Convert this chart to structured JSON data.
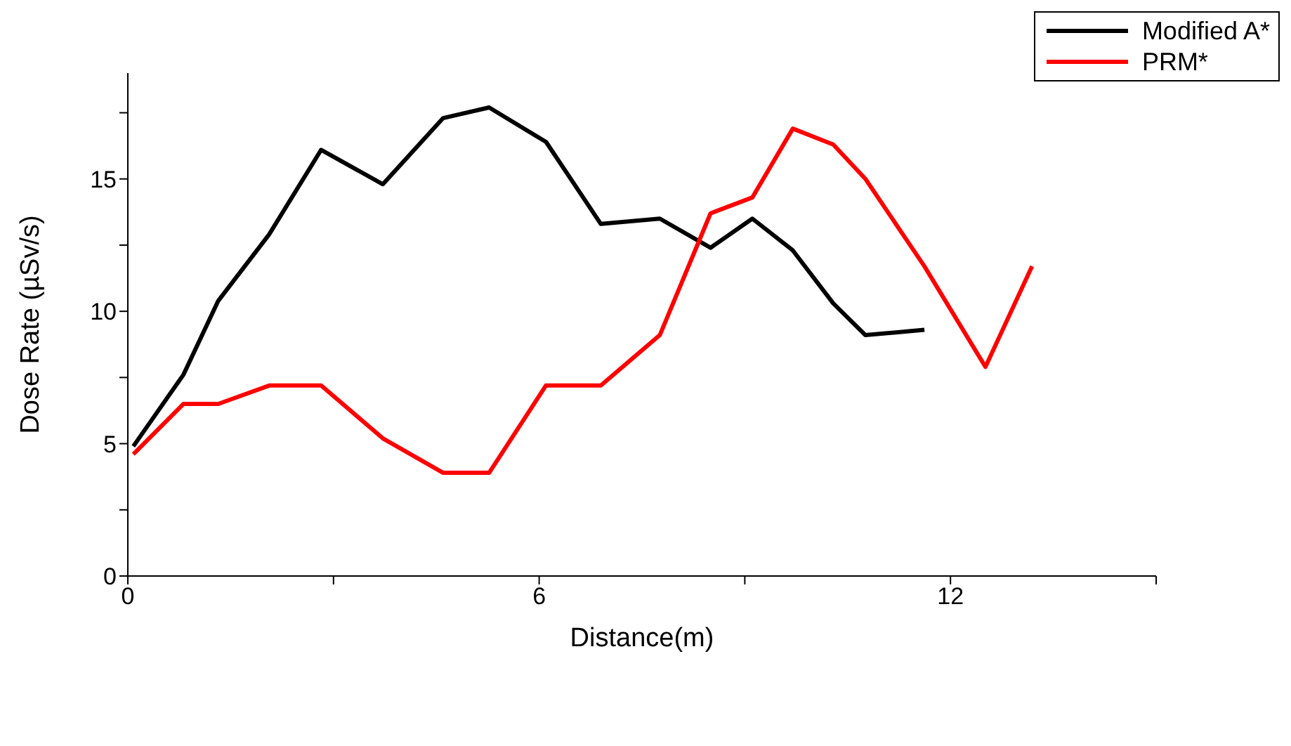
{
  "chart_data": {
    "type": "line",
    "xlabel": "Distance(m)",
    "ylabel": "Dose Rate (µSv/s)",
    "xlim": [
      0,
      15
    ],
    "xticks": [
      0,
      {
        "value": 3,
        "label": null
      },
      6,
      {
        "value": 9,
        "label": null
      },
      12,
      {
        "value": 15,
        "label": null
      }
    ],
    "ylim": [
      0,
      19
    ],
    "yticks": [
      0,
      {
        "value": 2.5,
        "label": null
      },
      5,
      {
        "value": 7.5,
        "label": null
      },
      10,
      {
        "value": 12.5,
        "label": null
      },
      15,
      {
        "value": 17.5,
        "label": null
      }
    ],
    "grid": false,
    "legend": "top right",
    "line_style": "solid",
    "series": [
      {
        "name": "Modified A*",
        "color": "#000000",
        "x": [
          0.08,
          0.81,
          1.32,
          2.06,
          2.82,
          3.72,
          4.6,
          5.27,
          6.1,
          6.9,
          7.76,
          8.5,
          9.11,
          9.7,
          10.29,
          10.76,
          11.62
        ],
        "values": [
          4.9,
          7.6,
          10.4,
          12.9,
          16.1,
          14.8,
          17.3,
          17.7,
          16.4,
          13.3,
          13.5,
          12.4,
          13.5,
          12.3,
          10.3,
          9.1,
          9.3
        ]
      },
      {
        "name": "PRM*",
        "color": "#ff0000",
        "x": [
          0.08,
          0.81,
          1.32,
          2.07,
          2.82,
          3.72,
          4.6,
          5.27,
          6.1,
          6.9,
          7.76,
          8.5,
          9.11,
          9.7,
          10.29,
          10.76,
          11.62,
          12.51,
          13.19
        ],
        "values": [
          4.6,
          6.5,
          6.5,
          7.2,
          7.2,
          5.2,
          3.9,
          3.9,
          7.2,
          7.2,
          9.1,
          13.7,
          14.3,
          16.9,
          16.3,
          15.0,
          11.7,
          7.9,
          11.7
        ]
      }
    ]
  }
}
